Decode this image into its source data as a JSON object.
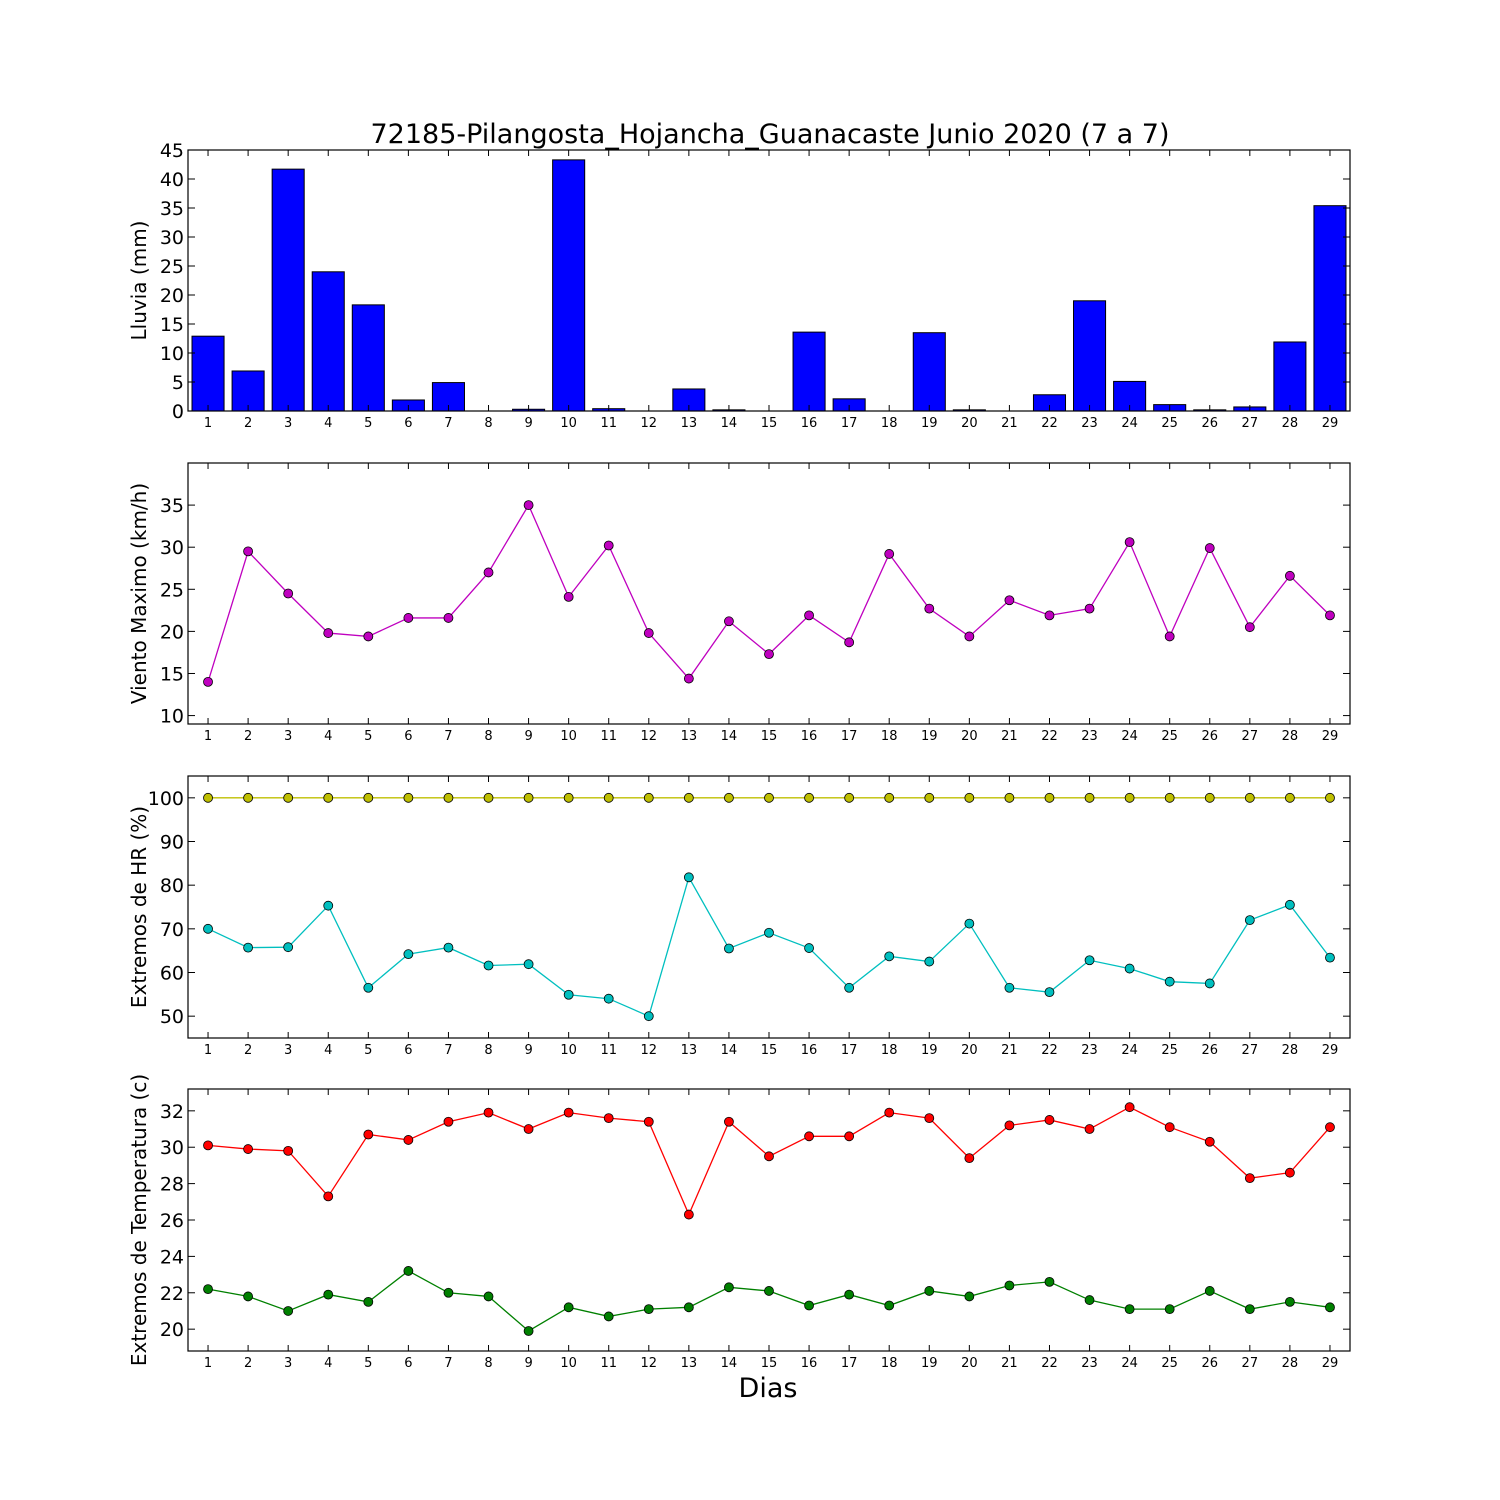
{
  "chart_data": [
    {
      "type": "bar",
      "title": "72185-Pilangosta_Hojancha_Guanacaste Junio 2020  (7 a 7)",
      "ylabel": "Lluvia (mm)",
      "ylim": [
        0,
        45
      ],
      "yticks": [
        0,
        5,
        10,
        15,
        20,
        25,
        30,
        35,
        40,
        45
      ],
      "categories": [
        1,
        2,
        3,
        4,
        5,
        6,
        7,
        8,
        9,
        10,
        11,
        12,
        13,
        14,
        15,
        16,
        17,
        18,
        19,
        20,
        21,
        22,
        23,
        24,
        25,
        26,
        27,
        28,
        29
      ],
      "series": [
        {
          "color": "#0000ff",
          "values": [
            12.9,
            6.9,
            41.7,
            24.0,
            18.3,
            1.9,
            4.9,
            0.0,
            0.3,
            43.3,
            0.4,
            0.0,
            3.8,
            0.2,
            0.0,
            13.6,
            2.1,
            0.0,
            13.5,
            0.2,
            0.0,
            2.8,
            19.0,
            5.1,
            1.1,
            0.2,
            0.7,
            11.9,
            35.4
          ]
        }
      ]
    },
    {
      "type": "line",
      "ylabel": "Viento Maximo (km/h)",
      "ylim": [
        9,
        40
      ],
      "yticks": [
        10,
        15,
        20,
        25,
        30,
        35
      ],
      "categories": [
        1,
        2,
        3,
        4,
        5,
        6,
        7,
        8,
        9,
        10,
        11,
        12,
        13,
        14,
        15,
        16,
        17,
        18,
        19,
        20,
        21,
        22,
        23,
        24,
        25,
        26,
        27,
        28,
        29
      ],
      "series": [
        {
          "color": "#bf00bf",
          "values": [
            14.0,
            29.5,
            24.5,
            19.8,
            19.4,
            21.6,
            21.6,
            27.0,
            35.0,
            24.1,
            30.2,
            19.8,
            14.4,
            21.2,
            17.3,
            21.9,
            18.7,
            29.2,
            22.7,
            19.4,
            23.7,
            21.9,
            22.7,
            30.6,
            19.4,
            29.9,
            20.5,
            26.6,
            21.9
          ]
        }
      ]
    },
    {
      "type": "line",
      "ylabel": "Extremos de HR (%)",
      "ylim": [
        45,
        105
      ],
      "yticks": [
        50,
        60,
        70,
        80,
        90,
        100
      ],
      "categories": [
        1,
        2,
        3,
        4,
        5,
        6,
        7,
        8,
        9,
        10,
        11,
        12,
        13,
        14,
        15,
        16,
        17,
        18,
        19,
        20,
        21,
        22,
        23,
        24,
        25,
        26,
        27,
        28,
        29
      ],
      "series": [
        {
          "color": "#bfbf00",
          "values": [
            100,
            100,
            100,
            100,
            100,
            100,
            100,
            100,
            100,
            100,
            100,
            100,
            100,
            100,
            100,
            100,
            100,
            100,
            100,
            100,
            100,
            100,
            100,
            100,
            100,
            100,
            100,
            100,
            100
          ]
        },
        {
          "color": "#00bfbf",
          "values": [
            70.0,
            65.7,
            65.8,
            75.3,
            56.5,
            64.2,
            65.7,
            61.6,
            61.9,
            54.9,
            54.0,
            50.0,
            81.8,
            65.5,
            69.1,
            65.6,
            56.5,
            63.7,
            62.5,
            71.2,
            56.5,
            55.5,
            62.8,
            60.9,
            57.9,
            57.5,
            72.0,
            75.5,
            63.4
          ]
        }
      ]
    },
    {
      "type": "line",
      "ylabel": "Extremos de Temperatura (c)",
      "xlabel": "Dias",
      "ylim": [
        18.8,
        33.2
      ],
      "yticks": [
        20,
        22,
        24,
        26,
        28,
        30,
        32
      ],
      "categories": [
        1,
        2,
        3,
        4,
        5,
        6,
        7,
        8,
        9,
        10,
        11,
        12,
        13,
        14,
        15,
        16,
        17,
        18,
        19,
        20,
        21,
        22,
        23,
        24,
        25,
        26,
        27,
        28,
        29
      ],
      "series": [
        {
          "color": "#ff0000",
          "values": [
            30.1,
            29.9,
            29.8,
            27.3,
            30.7,
            30.4,
            31.4,
            31.9,
            31.0,
            31.9,
            31.6,
            31.4,
            26.3,
            31.4,
            29.5,
            30.6,
            30.6,
            31.9,
            31.6,
            29.4,
            31.2,
            31.5,
            31.0,
            32.2,
            31.1,
            30.3,
            28.3,
            28.6,
            31.1
          ]
        },
        {
          "color": "#008000",
          "values": [
            22.2,
            21.8,
            21.0,
            21.9,
            21.5,
            23.2,
            22.0,
            21.8,
            19.9,
            21.2,
            20.7,
            21.1,
            21.2,
            22.3,
            22.1,
            21.3,
            21.9,
            21.3,
            22.1,
            21.8,
            22.4,
            22.6,
            21.6,
            21.1,
            21.1,
            22.1,
            21.1,
            21.5,
            21.2
          ]
        }
      ]
    }
  ]
}
